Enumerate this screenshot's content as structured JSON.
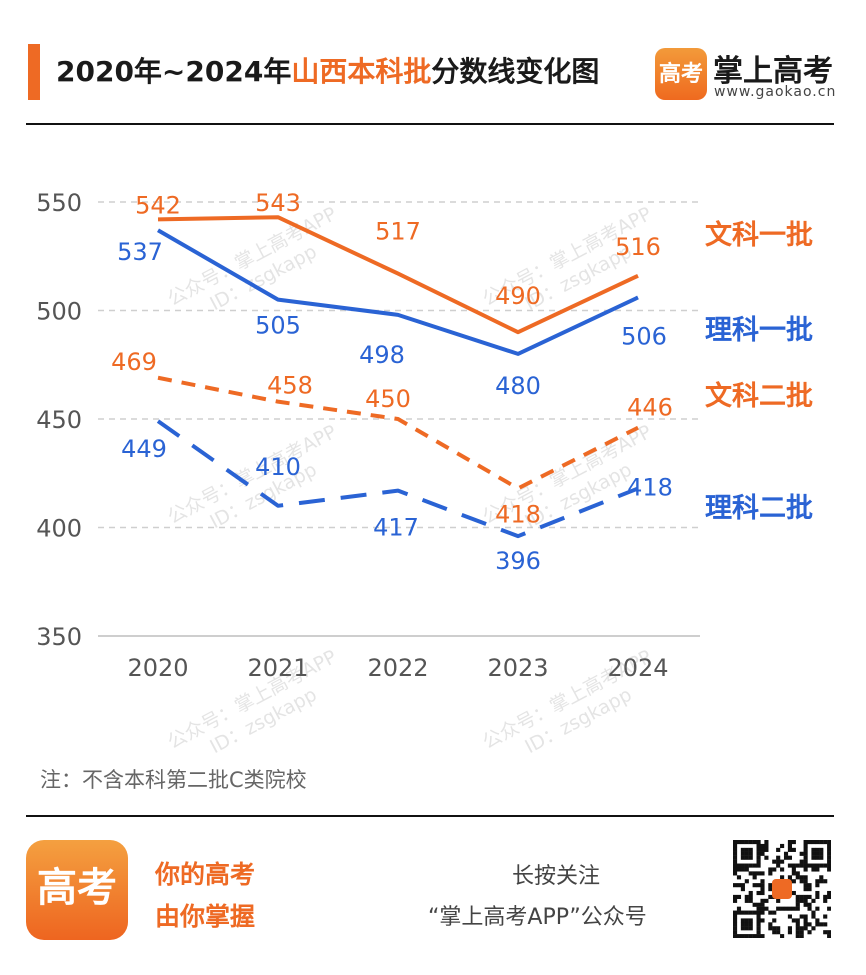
{
  "header": {
    "title_prefix": "2020年~2024年",
    "title_highlight": "山西本科批",
    "title_suffix": "分数线变化图",
    "brand_name": "掌上高考",
    "brand_site": "www.gaokao.cn",
    "logo_glyph": "高考"
  },
  "note": "注：不含本科第二批C类院校",
  "footer": {
    "app_icon_glyph": "高考",
    "slogan_line1": "你的高考",
    "slogan_line2": "由你掌握",
    "follow_line1": "长按关注",
    "follow_line2": "“掌上高考APP”公众号"
  },
  "watermark": {
    "line1": "公众号：掌上高考APP",
    "line2": "ID：zsgkapp"
  },
  "colors": {
    "accent": "#ee6a24",
    "blue": "#2a63d4",
    "grid": "#cfcfcf"
  },
  "chart_data": {
    "type": "line",
    "x": [
      "2020",
      "2021",
      "2022",
      "2023",
      "2024"
    ],
    "ylim": [
      350,
      560
    ],
    "yticks": [
      350,
      400,
      450,
      500,
      550
    ],
    "grid": true,
    "legend": "right, inline labels",
    "series": [
      {
        "name": "文科一批",
        "values": [
          542,
          543,
          517,
          490,
          516
        ],
        "color": "#ee6a24",
        "style": "solid"
      },
      {
        "name": "理科一批",
        "values": [
          537,
          505,
          498,
          480,
          506
        ],
        "color": "#2a63d4",
        "style": "solid"
      },
      {
        "name": "文科二批",
        "values": [
          469,
          458,
          450,
          418,
          446
        ],
        "color": "#ee6a24",
        "style": "dashed"
      },
      {
        "name": "理科二批",
        "values": [
          449,
          410,
          417,
          396,
          418
        ],
        "color": "#2a63d4",
        "style": "dashed"
      }
    ]
  }
}
